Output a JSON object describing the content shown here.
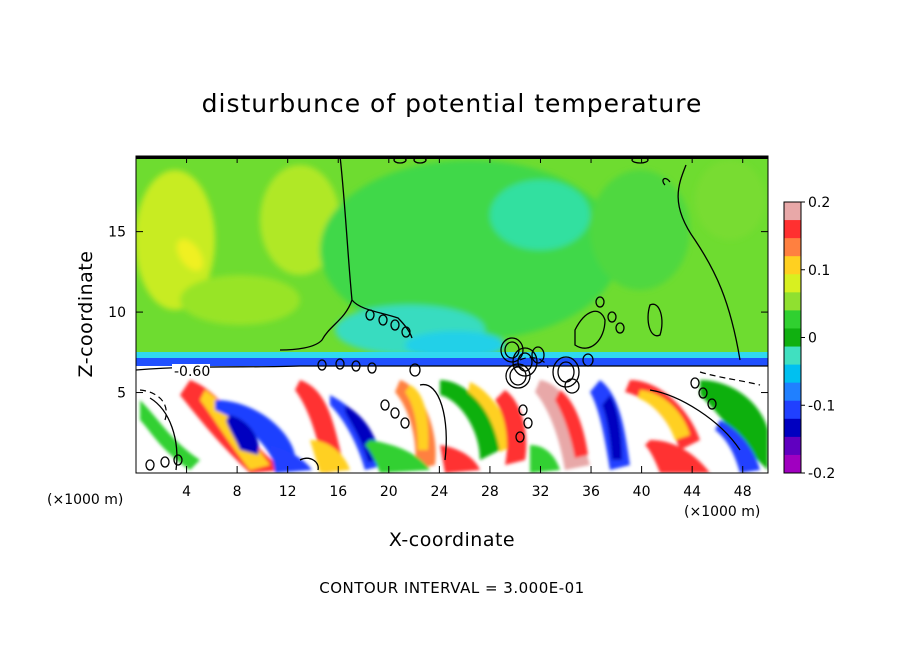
{
  "chart_data": {
    "type": "heatmap",
    "title": "disturbunce of potential temperature",
    "xlabel": "X-coordinate",
    "ylabel": "Z-coordinate",
    "x_unit_left": "(×1000 m)",
    "x_unit_right": "(×1000 m)",
    "x_ticks": [
      4,
      8,
      12,
      16,
      20,
      24,
      28,
      32,
      36,
      40,
      44,
      48
    ],
    "y_ticks": [
      5,
      10,
      15
    ],
    "xlim": [
      0,
      50
    ],
    "ylim": [
      0,
      19.7
    ],
    "colorbar": {
      "min": -0.2,
      "max": 0.2,
      "tick_labels": [
        "0.2",
        "0.1",
        "0",
        "-0.1",
        "-0.2"
      ],
      "tick_values": [
        0.2,
        0.1,
        0,
        -0.1,
        -0.2
      ],
      "colors": [
        "#e8a8a8",
        "#ff3030",
        "#ff8040",
        "#ffd020",
        "#d8f020",
        "#90e030",
        "#30d030",
        "#10b010",
        "#40e0c0",
        "#00c0f0",
        "#2080ff",
        "#2040ff",
        "#0000c0",
        "#6000c0",
        "#a000c0"
      ]
    },
    "contour_label": "-0.60",
    "contour_interval_text": "CONTOUR INTERVAL = 3.000E-01"
  }
}
